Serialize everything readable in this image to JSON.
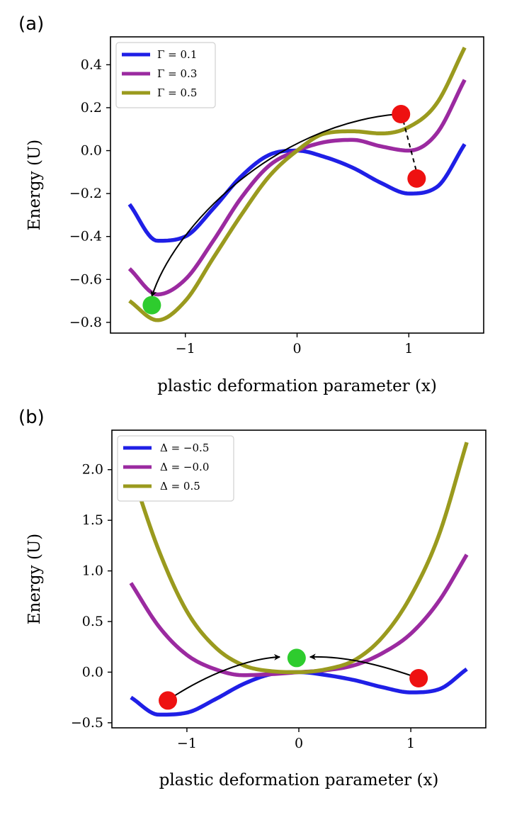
{
  "figure": {
    "panels": [
      {
        "label": "(a)",
        "legend_location": "upper-left"
      },
      {
        "label": "(b)",
        "legend_location": "upper-left"
      }
    ]
  },
  "chart_data": [
    {
      "type": "line",
      "panel": "(a)",
      "title": "",
      "xlabel": "plastic deformation parameter (x)",
      "ylabel": "Energy (U)",
      "xlim": [
        -1.67,
        1.67
      ],
      "ylim": [
        -0.85,
        0.53
      ],
      "xticks": [
        -1,
        0,
        1
      ],
      "xtick_labels": [
        "−1",
        "0",
        "1"
      ],
      "yticks": [
        -0.8,
        -0.6,
        -0.4,
        -0.2,
        0.0,
        0.2,
        0.4
      ],
      "ytick_labels": [
        "−0.8",
        "−0.6",
        "−0.4",
        "−0.2",
        "0.0",
        "0.2",
        "0.4"
      ],
      "grid": false,
      "x_domain": [
        -1.5,
        1.5
      ],
      "series": [
        {
          "name": "Γ = 0.1",
          "color": "#1f1fe6",
          "x": [
            -1.5,
            -1.25,
            -1.0,
            -0.75,
            -0.5,
            -0.25,
            0.0,
            0.25,
            0.5,
            0.75,
            1.0,
            1.25,
            1.5
          ],
          "y": [
            -0.25,
            -0.42,
            -0.4,
            -0.27,
            -0.12,
            -0.02,
            0.0,
            -0.03,
            -0.08,
            -0.15,
            -0.2,
            -0.17,
            0.03
          ]
        },
        {
          "name": "Γ = 0.3",
          "color": "#9b2aa0",
          "x": [
            -1.5,
            -1.25,
            -1.0,
            -0.75,
            -0.5,
            -0.25,
            0.0,
            0.25,
            0.5,
            0.75,
            1.0,
            1.25,
            1.5
          ],
          "y": [
            -0.55,
            -0.67,
            -0.6,
            -0.42,
            -0.22,
            -0.07,
            0.0,
            0.04,
            0.05,
            0.02,
            0.0,
            0.08,
            0.33
          ]
        },
        {
          "name": "Γ = 0.5",
          "color": "#9a9a1e",
          "x": [
            -1.5,
            -1.25,
            -1.0,
            -0.75,
            -0.5,
            -0.25,
            0.0,
            0.25,
            0.5,
            0.75,
            1.0,
            1.25,
            1.5
          ],
          "y": [
            -0.7,
            -0.79,
            -0.7,
            -0.5,
            -0.3,
            -0.12,
            0.0,
            0.08,
            0.09,
            0.08,
            0.11,
            0.22,
            0.48
          ]
        }
      ],
      "markers": [
        {
          "kind": "red-marker",
          "color": "#ee1111",
          "x": 0.93,
          "y": 0.17
        },
        {
          "kind": "red-marker",
          "color": "#ee1111",
          "x": 1.07,
          "y": -0.13
        },
        {
          "kind": "green-marker",
          "color": "#2ecc2e",
          "x": -1.3,
          "y": -0.72
        }
      ],
      "annotations": [
        {
          "kind": "dashed-connector",
          "from": [
            0.95,
            0.14
          ],
          "to": [
            1.07,
            -0.1
          ]
        },
        {
          "kind": "arrow",
          "points": [
            [
              0.9,
              0.17
            ],
            [
              -0.2,
              0.12
            ],
            [
              -1.1,
              -0.35
            ],
            [
              -1.3,
              -0.68
            ]
          ]
        }
      ]
    },
    {
      "type": "line",
      "panel": "(b)",
      "title": "",
      "xlabel": "plastic deformation parameter (x)",
      "ylabel": "Energy (U)",
      "xlim": [
        -1.67,
        1.67
      ],
      "ylim": [
        -0.55,
        2.39
      ],
      "xticks": [
        -1,
        0,
        1
      ],
      "xtick_labels": [
        "−1",
        "0",
        "1"
      ],
      "yticks": [
        -0.5,
        0.0,
        0.5,
        1.0,
        1.5,
        2.0
      ],
      "ytick_labels": [
        "−0.5",
        "0.0",
        "0.5",
        "1.0",
        "1.5",
        "2.0"
      ],
      "grid": false,
      "x_domain": [
        -1.5,
        1.5
      ],
      "series": [
        {
          "name": "Δ = −0.5",
          "color": "#1f1fe6",
          "x": [
            -1.5,
            -1.25,
            -1.0,
            -0.75,
            -0.5,
            -0.25,
            0.0,
            0.25,
            0.5,
            0.75,
            1.0,
            1.25,
            1.5
          ],
          "y": [
            -0.25,
            -0.42,
            -0.4,
            -0.27,
            -0.12,
            -0.02,
            0.0,
            -0.03,
            -0.08,
            -0.15,
            -0.2,
            -0.17,
            0.03
          ]
        },
        {
          "name": "Δ = −0.0",
          "color": "#9b2aa0",
          "x": [
            -1.5,
            -1.25,
            -1.0,
            -0.75,
            -0.5,
            -0.25,
            0.0,
            0.25,
            0.5,
            0.75,
            1.0,
            1.25,
            1.5
          ],
          "y": [
            0.88,
            0.45,
            0.17,
            0.03,
            -0.03,
            -0.02,
            0.0,
            0.02,
            0.07,
            0.19,
            0.38,
            0.7,
            1.16
          ]
        },
        {
          "name": "Δ = 0.5",
          "color": "#9a9a1e",
          "x": [
            -1.5,
            -1.25,
            -1.0,
            -0.75,
            -0.5,
            -0.25,
            0.0,
            0.25,
            0.5,
            0.75,
            1.0,
            1.25,
            1.5
          ],
          "y": [
            2.0,
            1.2,
            0.6,
            0.25,
            0.07,
            0.01,
            0.0,
            0.03,
            0.12,
            0.35,
            0.75,
            1.35,
            2.27
          ]
        }
      ],
      "markers": [
        {
          "kind": "red-marker",
          "color": "#ee1111",
          "x": -1.17,
          "y": -0.28
        },
        {
          "kind": "red-marker",
          "color": "#ee1111",
          "x": 1.07,
          "y": -0.06
        },
        {
          "kind": "green-marker",
          "color": "#2ecc2e",
          "x": -0.02,
          "y": 0.14
        }
      ],
      "annotations": [
        {
          "kind": "arrow",
          "points": [
            [
              -1.12,
              -0.24
            ],
            [
              -0.75,
              0.02
            ],
            [
              -0.4,
              0.14
            ],
            [
              -0.17,
              0.15
            ]
          ]
        },
        {
          "kind": "arrow",
          "points": [
            [
              1.02,
              -0.04
            ],
            [
              0.7,
              0.08
            ],
            [
              0.4,
              0.16
            ],
            [
              0.1,
              0.15
            ]
          ]
        }
      ]
    }
  ]
}
